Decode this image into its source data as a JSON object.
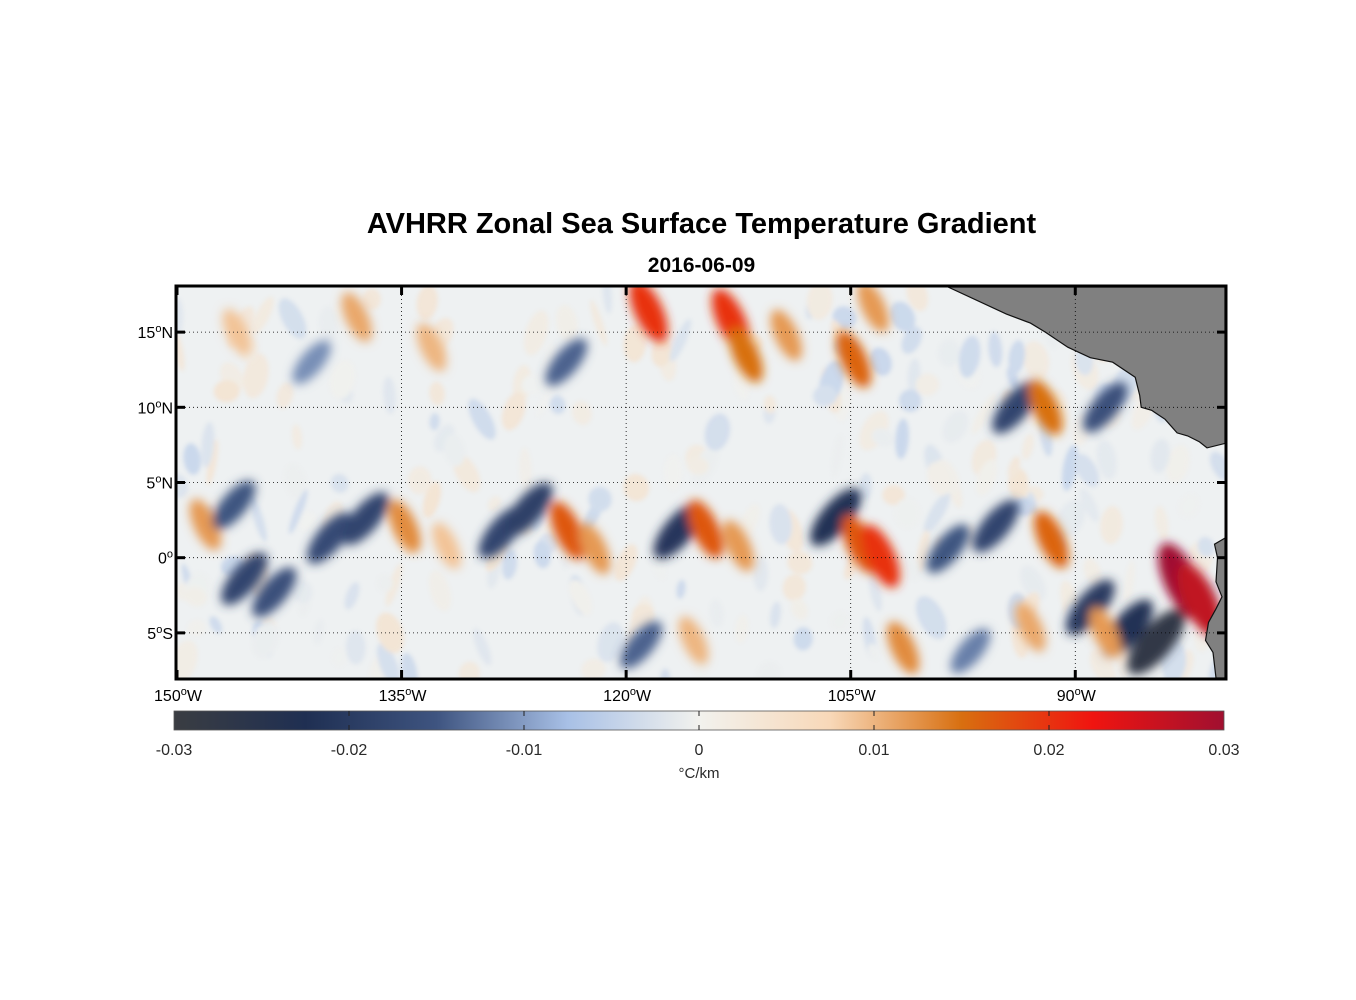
{
  "figure": {
    "title": "AVHRR Zonal Sea Surface Temperature Gradient",
    "subtitle": "2016-06-09"
  },
  "map": {
    "lon_range": [
      -150,
      -80
    ],
    "lat_range": [
      -8,
      18
    ],
    "x_ticks": [
      {
        "value": -150,
        "num": "150",
        "hemi": "W"
      },
      {
        "value": -135,
        "num": "135",
        "hemi": "W"
      },
      {
        "value": -120,
        "num": "120",
        "hemi": "W"
      },
      {
        "value": -105,
        "num": "105",
        "hemi": "W"
      },
      {
        "value": -90,
        "num": "90",
        "hemi": "W"
      }
    ],
    "y_ticks": [
      {
        "value": 15,
        "num": "15",
        "hemi": "N"
      },
      {
        "value": 10,
        "num": "10",
        "hemi": "N"
      },
      {
        "value": 5,
        "num": "5",
        "hemi": "N"
      },
      {
        "value": 0,
        "num": "0",
        "hemi": ""
      },
      {
        "value": -5,
        "num": "5",
        "hemi": "S"
      }
    ],
    "degree_symbol": "o",
    "grid": "dotted",
    "land_color": "#808080"
  },
  "colorbar": {
    "min": -0.03,
    "max": 0.03,
    "ticks": [
      "-0.03",
      "-0.02",
      "-0.01",
      "0",
      "0.01",
      "0.02",
      "0.03"
    ],
    "unit": "°C/km",
    "colors": [
      "#3a3d42",
      "#1f2f52",
      "#3e5480",
      "#a8c0e6",
      "#f2f2ee",
      "#f8d8b8",
      "#d86f10",
      "#f01410",
      "#a01030"
    ]
  },
  "chart_data": {
    "type": "heatmap",
    "title": "AVHRR Zonal Sea Surface Temperature Gradient",
    "subtitle": "2016-06-09",
    "xlabel": "",
    "ylabel": "",
    "x_range": [
      -150,
      -80
    ],
    "y_range": [
      -8,
      18
    ],
    "colorbar_range": [
      -0.03,
      0.03
    ],
    "colorbar_label": "°C/km",
    "features": [
      {
        "lon": -148.1,
        "lat": 2.2,
        "value": 0.012
      },
      {
        "lon": -146.2,
        "lat": 3.5,
        "value": -0.015
      },
      {
        "lon": -145.5,
        "lat": -1.4,
        "value": -0.018
      },
      {
        "lon": -143.5,
        "lat": -2.3,
        "value": -0.016
      },
      {
        "lon": -139.8,
        "lat": 1.3,
        "value": -0.017
      },
      {
        "lon": -137.4,
        "lat": 2.6,
        "value": -0.018
      },
      {
        "lon": -134.8,
        "lat": 2.1,
        "value": 0.013
      },
      {
        "lon": -132.0,
        "lat": 0.8,
        "value": 0.009
      },
      {
        "lon": -128.3,
        "lat": 1.7,
        "value": -0.018
      },
      {
        "lon": -126.5,
        "lat": 3.2,
        "value": -0.019
      },
      {
        "lon": -123.9,
        "lat": 1.8,
        "value": 0.017
      },
      {
        "lon": -122.1,
        "lat": 0.6,
        "value": 0.012
      },
      {
        "lon": -116.5,
        "lat": 1.8,
        "value": -0.021
      },
      {
        "lon": -114.7,
        "lat": 1.9,
        "value": 0.017
      },
      {
        "lon": -112.5,
        "lat": 0.8,
        "value": 0.012
      },
      {
        "lon": -106.0,
        "lat": 2.7,
        "value": -0.022
      },
      {
        "lon": -104.4,
        "lat": 0.9,
        "value": 0.017
      },
      {
        "lon": -103.0,
        "lat": 0.1,
        "value": 0.02
      },
      {
        "lon": -98.5,
        "lat": 0.6,
        "value": -0.015
      },
      {
        "lon": -95.3,
        "lat": 2.1,
        "value": -0.018
      },
      {
        "lon": -91.6,
        "lat": 1.2,
        "value": 0.016
      },
      {
        "lon": -89.0,
        "lat": -3.3,
        "value": -0.02
      },
      {
        "lon": -86.5,
        "lat": -4.7,
        "value": -0.022
      },
      {
        "lon": -84.6,
        "lat": -5.6,
        "value": -0.028
      },
      {
        "lon": -82.9,
        "lat": -1.6,
        "value": 0.03
      },
      {
        "lon": -81.7,
        "lat": -2.8,
        "value": 0.027
      },
      {
        "lon": -118.5,
        "lat": 16.4,
        "value": 0.02
      },
      {
        "lon": -113.0,
        "lat": 15.8,
        "value": 0.02
      },
      {
        "lon": -112.0,
        "lat": 13.5,
        "value": 0.015
      },
      {
        "lon": -109.3,
        "lat": 14.8,
        "value": 0.012
      },
      {
        "lon": -104.8,
        "lat": 13.2,
        "value": 0.016
      },
      {
        "lon": -103.5,
        "lat": 16.7,
        "value": 0.012
      },
      {
        "lon": -94.0,
        "lat": 10.0,
        "value": -0.018
      },
      {
        "lon": -92.0,
        "lat": 10.0,
        "value": 0.015
      },
      {
        "lon": -88.0,
        "lat": 10.0,
        "value": -0.016
      },
      {
        "lon": -124.0,
        "lat": 13.0,
        "value": -0.014
      },
      {
        "lon": -133.0,
        "lat": 14.0,
        "value": 0.01
      },
      {
        "lon": -138.0,
        "lat": 16.0,
        "value": 0.011
      },
      {
        "lon": -141.0,
        "lat": 13.0,
        "value": -0.011
      },
      {
        "lon": -146.0,
        "lat": 15.0,
        "value": 0.009
      },
      {
        "lon": -119.0,
        "lat": -5.8,
        "value": -0.014
      },
      {
        "lon": -115.5,
        "lat": -5.5,
        "value": 0.01
      },
      {
        "lon": -101.5,
        "lat": -6.0,
        "value": 0.013
      },
      {
        "lon": -97.0,
        "lat": -6.2,
        "value": -0.012
      },
      {
        "lon": -93.0,
        "lat": -4.6,
        "value": 0.011
      },
      {
        "lon": -88.0,
        "lat": -5.0,
        "value": 0.012
      }
    ],
    "land_regions": [
      "Central America (northeast corner)",
      "South America coast (east edge, ~0°–6°S)"
    ]
  }
}
